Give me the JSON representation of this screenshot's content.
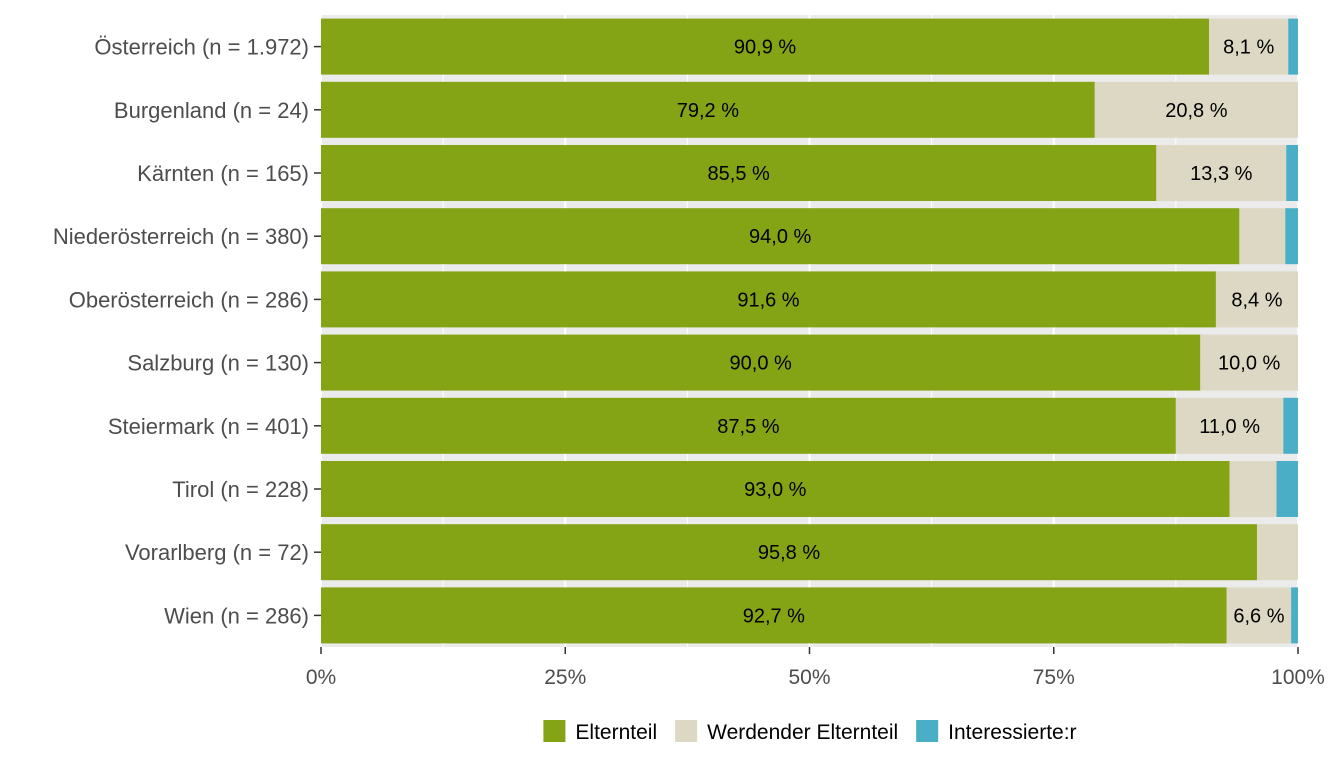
{
  "chart_data": {
    "type": "bar",
    "orientation": "horizontal",
    "stacked": true,
    "normalized": true,
    "categories": [
      "Österreich (n = 1.972)",
      "Burgenland (n = 24)",
      "Kärnten (n = 165)",
      "Niederösterreich (n = 380)",
      "Oberösterreich (n = 286)",
      "Salzburg (n = 130)",
      "Steiermark (n = 401)",
      "Tirol (n = 228)",
      "Vorarlberg (n = 72)",
      "Wien (n = 286)"
    ],
    "series": [
      {
        "name": "Elternteil",
        "color": "#84a315",
        "values": [
          90.9,
          79.2,
          85.5,
          94.0,
          91.6,
          90.0,
          87.5,
          93.0,
          95.8,
          92.7
        ],
        "labels": [
          "90,9 %",
          "79,2 %",
          "85,5 %",
          "94,0 %",
          "91,6 %",
          "90,0 %",
          "87,5 %",
          "93,0 %",
          "95,8 %",
          "92,7 %"
        ]
      },
      {
        "name": "Werdender Elternteil",
        "color": "#dcd8c3",
        "values": [
          8.1,
          20.8,
          13.3,
          4.7,
          8.4,
          10.0,
          11.0,
          4.8,
          4.2,
          6.6
        ],
        "labels": [
          "8,1 %",
          "20,8 %",
          "13,3 %",
          "",
          "8,4 %",
          "10,0 %",
          "11,0 %",
          "",
          "",
          "6,6 %"
        ]
      },
      {
        "name": "Interessierte:r",
        "color": "#4aaec7",
        "values": [
          1.0,
          0.0,
          1.2,
          1.3,
          0.0,
          0.0,
          1.5,
          2.2,
          0.0,
          0.7
        ],
        "labels": [
          "",
          "",
          "",
          "",
          "",
          "",
          "",
          "",
          "",
          ""
        ]
      }
    ],
    "xlim": [
      0,
      100
    ],
    "x_ticks": [
      {
        "value": 0,
        "label": "0%"
      },
      {
        "value": 25,
        "label": "25%"
      },
      {
        "value": 50,
        "label": "50%"
      },
      {
        "value": 75,
        "label": "75%"
      },
      {
        "value": 100,
        "label": "100%"
      }
    ],
    "grid": true,
    "panel_background": "#ebebeb",
    "legend_position": "bottom",
    "title": "",
    "xlabel": "",
    "ylabel": ""
  }
}
